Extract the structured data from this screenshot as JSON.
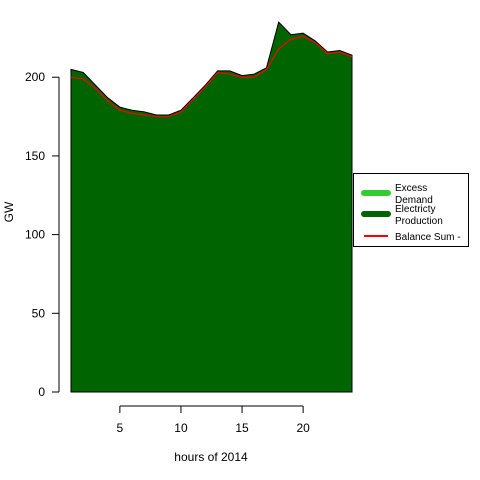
{
  "chart_data": {
    "type": "area",
    "title": "",
    "xlabel": "hours of 2014",
    "ylabel": "GW",
    "x": [
      1,
      2,
      3,
      4,
      5,
      6,
      7,
      8,
      9,
      10,
      11,
      12,
      13,
      14,
      15,
      16,
      17,
      18,
      19,
      20,
      21,
      22,
      23,
      24
    ],
    "xlim": [
      1,
      24
    ],
    "ylim": [
      0,
      230
    ],
    "xticks": [
      5,
      10,
      15,
      20
    ],
    "yticks": [
      0,
      50,
      100,
      150,
      200
    ],
    "grid": false,
    "legend_position": "right",
    "series": [
      {
        "name": "Excess Demand",
        "kind": "area",
        "color": "#33cc33",
        "values": [
          0,
          0,
          0,
          0,
          0,
          0,
          0,
          0,
          0,
          0,
          0,
          0,
          0,
          0,
          0,
          0,
          0,
          0,
          0,
          0,
          0,
          0,
          0,
          0
        ]
      },
      {
        "name": "Electricty Production",
        "kind": "area",
        "color": "#006400",
        "values": [
          205,
          203,
          195,
          187,
          181,
          179,
          178,
          176,
          176,
          179,
          187,
          195,
          204,
          204,
          201,
          202,
          206,
          235,
          227,
          228,
          223,
          216,
          217,
          214
        ]
      },
      {
        "name": "Balance Sum -",
        "kind": "line",
        "color": "#ff0000",
        "values": [
          200,
          199,
          193,
          185,
          179,
          177,
          176,
          175,
          175,
          178,
          186,
          194,
          203,
          202,
          200,
          200,
          205,
          218,
          224,
          226,
          222,
          215,
          216,
          213
        ]
      }
    ]
  }
}
